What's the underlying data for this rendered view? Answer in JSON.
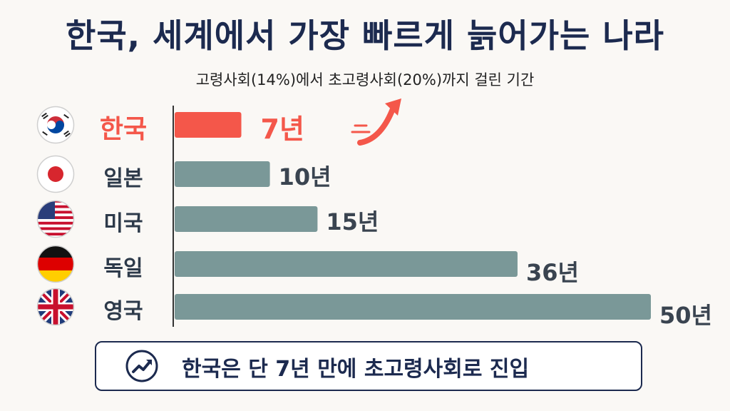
{
  "title": "한국, 세계에서 가장 빠르게 늙어가는 나라",
  "subtitle": "고령사회(14%)에서 초고령사회(20%)까지 걸린 기간",
  "colors": {
    "highlight": "#f4574a",
    "bar": "#7a9898",
    "text_dark": "#1c2a4f"
  },
  "chart_data": {
    "type": "bar",
    "orientation": "horizontal",
    "title": "",
    "categories": [
      "한국",
      "일본",
      "미국",
      "독일",
      "영국"
    ],
    "values": [
      7,
      10,
      15,
      36,
      50
    ],
    "value_labels": [
      "7년",
      "10년",
      "15년",
      "36년",
      "50년"
    ],
    "highlight_category": "한국",
    "flag_icons": [
      "south-korea-flag-icon",
      "japan-flag-icon",
      "usa-flag-icon",
      "germany-flag-icon",
      "uk-flag-icon"
    ],
    "xlim": [
      0,
      50
    ],
    "grid": false,
    "legend": "none"
  },
  "callout": {
    "text": "한국은 단 7년 만에 초고령사회로 진입",
    "icon": "trend-up-icon"
  }
}
